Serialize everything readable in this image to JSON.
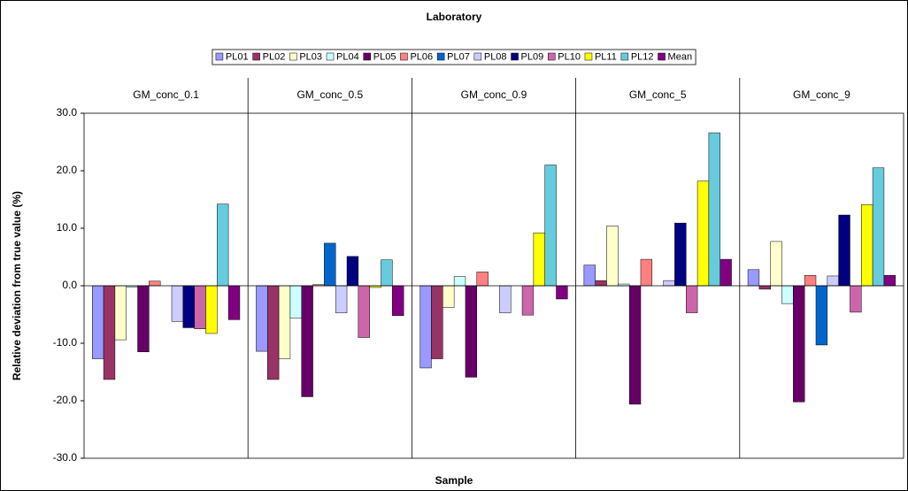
{
  "chart_data": {
    "type": "bar",
    "title": "Laboratory",
    "x_label": "Sample",
    "y_label": "Relative deviation from true value (%)",
    "categories": [
      "GM_conc_0.1",
      "GM_conc_0.5",
      "GM_conc_0.9",
      "GM_conc_5",
      "GM_conc_9"
    ],
    "series": [
      {
        "name": "PL01",
        "color": "#9999ff",
        "values": [
          -12.7,
          -11.4,
          -14.3,
          3.6,
          2.8
        ]
      },
      {
        "name": "PL02",
        "color": "#993366",
        "values": [
          -16.3,
          -16.3,
          -12.7,
          0.9,
          -0.6
        ]
      },
      {
        "name": "PL03",
        "color": "#ffffcc",
        "values": [
          -9.4,
          -12.7,
          -3.8,
          10.4,
          7.7
        ]
      },
      {
        "name": "PL04",
        "color": "#ccffff",
        "values": [
          -0.2,
          -5.6,
          1.6,
          0.3,
          -3.1
        ]
      },
      {
        "name": "PL05",
        "color": "#660066",
        "values": [
          -11.5,
          -19.3,
          -15.9,
          -20.6,
          -20.2
        ]
      },
      {
        "name": "PL06",
        "color": "#ff8080",
        "values": [
          0.8,
          0.2,
          2.4,
          4.6,
          1.8
        ]
      },
      {
        "name": "PL07",
        "color": "#0066cc",
        "values": [
          null,
          7.4,
          null,
          null,
          -10.3
        ]
      },
      {
        "name": "PL08",
        "color": "#ccccff",
        "values": [
          -6.2,
          -4.7,
          -4.7,
          0.9,
          1.7
        ]
      },
      {
        "name": "PL09",
        "color": "#000080",
        "values": [
          -7.3,
          5.1,
          null,
          10.9,
          12.3
        ]
      },
      {
        "name": "PL10",
        "color": "#cc66aa",
        "values": [
          -7.5,
          -9.0,
          -5.1,
          -4.7,
          -4.6
        ]
      },
      {
        "name": "PL11",
        "color": "#ffff00",
        "values": [
          -8.3,
          -0.3,
          9.2,
          18.2,
          14.1
        ]
      },
      {
        "name": "PL12",
        "color": "#66ccdd",
        "values": [
          14.2,
          4.5,
          21.0,
          26.6,
          20.5
        ]
      },
      {
        "name": "Mean",
        "color": "#800080",
        "values": [
          -5.9,
          -5.2,
          -2.3,
          4.6,
          1.8
        ]
      }
    ],
    "ylim": [
      -30,
      30
    ],
    "yticks": [
      {
        "value": -30,
        "label": "-30.0"
      },
      {
        "value": -20,
        "label": "-20.0"
      },
      {
        "value": -10,
        "label": "-10.0"
      },
      {
        "value": 0,
        "label": "0.0"
      },
      {
        "value": 10,
        "label": "10.0"
      },
      {
        "value": 20,
        "label": "20.0"
      },
      {
        "value": 30,
        "label": "30.0"
      }
    ],
    "grid": false
  }
}
